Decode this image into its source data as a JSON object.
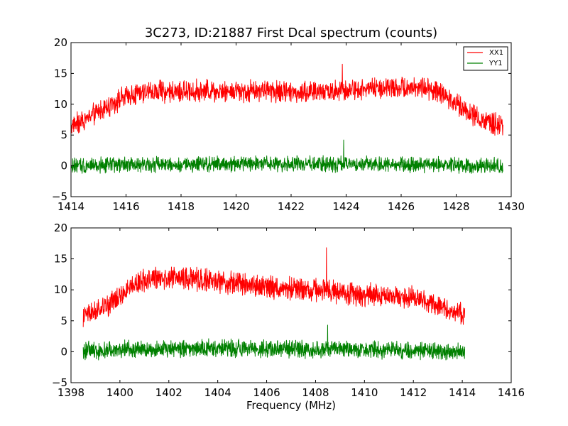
{
  "chart_data": [
    {
      "type": "line",
      "title": "3C273, ID:21887 First Dcal spectrum (counts)",
      "xlabel": "",
      "ylabel": "",
      "xlim": [
        1414,
        1430
      ],
      "ylim": [
        -5,
        20
      ],
      "xticks": [
        "1414",
        "1416",
        "1418",
        "1420",
        "1422",
        "1424",
        "1426",
        "1428",
        "1430"
      ],
      "yticks": [
        "−5",
        "0",
        "5",
        "10",
        "15",
        "20"
      ],
      "legend": {
        "placement": "top-right",
        "entries": [
          "XX1",
          "YY1"
        ]
      },
      "series": [
        {
          "name": "XX1",
          "color": "#ff0000",
          "x_range": [
            1414.0,
            1429.7
          ],
          "envelope_x": [
            1414.0,
            1414.5,
            1415.0,
            1415.5,
            1416.0,
            1416.5,
            1417.0,
            1418.0,
            1419.0,
            1420.0,
            1421.0,
            1422.0,
            1423.0,
            1424.0,
            1425.0,
            1426.0,
            1426.5,
            1427.0,
            1427.5,
            1428.0,
            1428.5,
            1429.0,
            1429.7
          ],
          "envelope_mean": [
            6.5,
            7.5,
            8.8,
            10.2,
            11.2,
            11.8,
            12.0,
            12.0,
            12.2,
            12.2,
            12.2,
            12.0,
            12.0,
            12.3,
            12.6,
            12.8,
            12.8,
            12.5,
            11.5,
            10.3,
            8.5,
            7.2,
            6.3
          ],
          "noise_amplitude": 1.3,
          "max_peak": 16.5
        },
        {
          "name": "YY1",
          "color": "#008000",
          "x_range": [
            1414.0,
            1429.7
          ],
          "envelope_x": [
            1414.0,
            1416.0,
            1420.0,
            1424.0,
            1428.0,
            1429.7
          ],
          "envelope_mean": [
            0.0,
            0.2,
            0.3,
            0.3,
            0.1,
            0.0
          ],
          "noise_amplitude": 0.9,
          "max_peak": 4.2
        }
      ]
    },
    {
      "type": "line",
      "title": "",
      "xlabel": "Frequency (MHz)",
      "ylabel": "",
      "xlim": [
        1398,
        1416
      ],
      "ylim": [
        -5,
        20
      ],
      "xticks": [
        "1398",
        "1400",
        "1402",
        "1404",
        "1406",
        "1408",
        "1410",
        "1412",
        "1414",
        "1416"
      ],
      "yticks": [
        "−5",
        "0",
        "5",
        "10",
        "15",
        "20"
      ],
      "series": [
        {
          "name": "XX1",
          "color": "#ff0000",
          "x_range": [
            1398.5,
            1414.1
          ],
          "envelope_x": [
            1398.5,
            1399.0,
            1399.5,
            1400.0,
            1400.5,
            1401.0,
            1401.5,
            1402.0,
            1403.0,
            1404.0,
            1405.0,
            1406.0,
            1407.0,
            1408.0,
            1409.0,
            1410.0,
            1411.0,
            1412.0,
            1412.5,
            1413.0,
            1413.5,
            1414.1
          ],
          "envelope_mean": [
            5.8,
            6.3,
            7.5,
            9.0,
            10.5,
            11.5,
            12.0,
            12.0,
            11.8,
            11.3,
            10.9,
            10.5,
            10.2,
            10.0,
            9.6,
            9.2,
            9.0,
            8.8,
            8.3,
            7.6,
            6.8,
            6.0
          ],
          "noise_amplitude": 1.3,
          "max_peak": 16.8
        },
        {
          "name": "YY1",
          "color": "#008000",
          "x_range": [
            1398.5,
            1414.1
          ],
          "envelope_x": [
            1398.5,
            1401.0,
            1404.0,
            1408.0,
            1412.0,
            1414.1
          ],
          "envelope_mean": [
            0.2,
            0.4,
            0.6,
            0.4,
            0.2,
            0.1
          ],
          "noise_amplitude": 1.0,
          "max_peak": 4.3
        }
      ]
    }
  ]
}
